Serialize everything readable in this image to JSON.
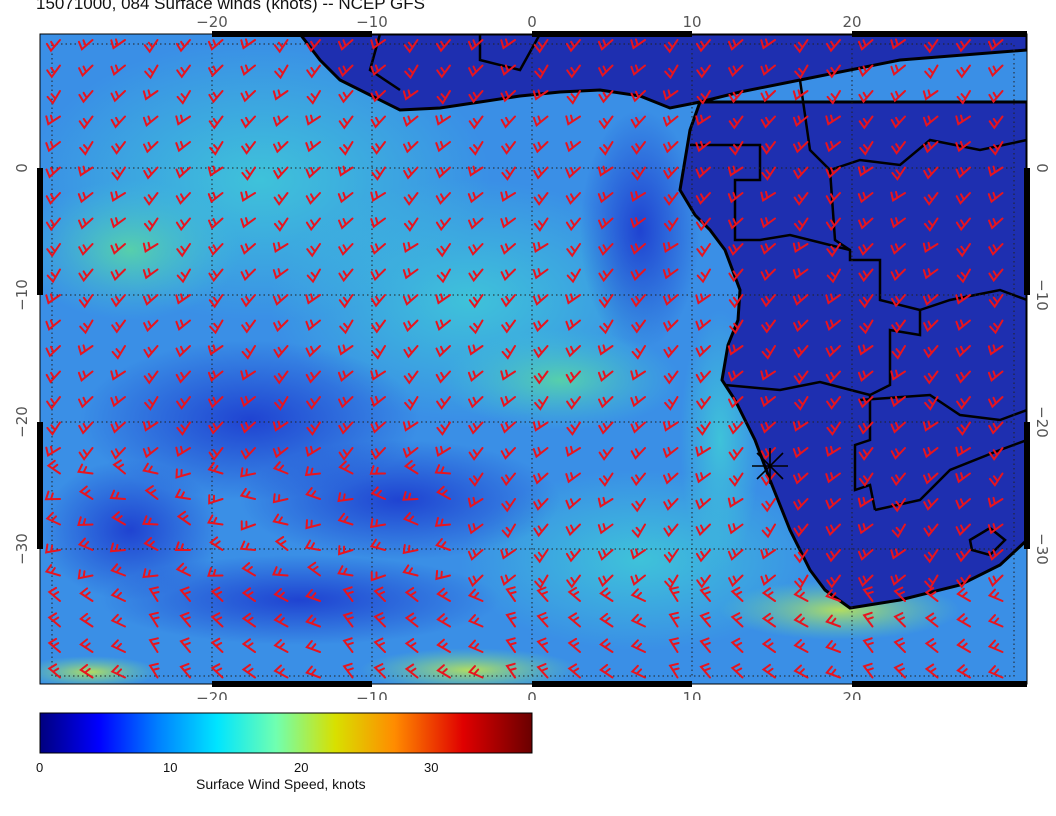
{
  "title": "15071000, 084 Surface winds (knots) -- NCEP GFS",
  "map": {
    "lon_ticks": [
      -20,
      -10,
      0,
      10,
      20
    ],
    "lat_ticks": [
      0,
      -10,
      -20,
      -30
    ],
    "lon_tick_labels": [
      "−20",
      "−10",
      "0",
      "10",
      "20"
    ],
    "lat_tick_labels": [
      "0",
      "−10",
      "−20",
      "−30"
    ],
    "lon_range": [
      -30.5,
      31
    ],
    "lat_range": [
      10,
      -39.5
    ],
    "graticule": "dotted",
    "land_color": "#1e2fb0",
    "barb_color": "#e8141e",
    "coast_color": "#000000",
    "marker": {
      "lon": 14.9,
      "lat": -23.3,
      "icon": "asterisk-icon"
    }
  },
  "colorbar": {
    "label": "Surface Wind Speed, knots",
    "ticks": [
      0,
      10,
      20,
      30
    ],
    "range": [
      0,
      38
    ],
    "colors": [
      "#00007f",
      "#0000ff",
      "#0080ff",
      "#00ffff",
      "#80ff80",
      "#ffff00",
      "#ff8000",
      "#ff0000",
      "#7f0000"
    ]
  }
}
